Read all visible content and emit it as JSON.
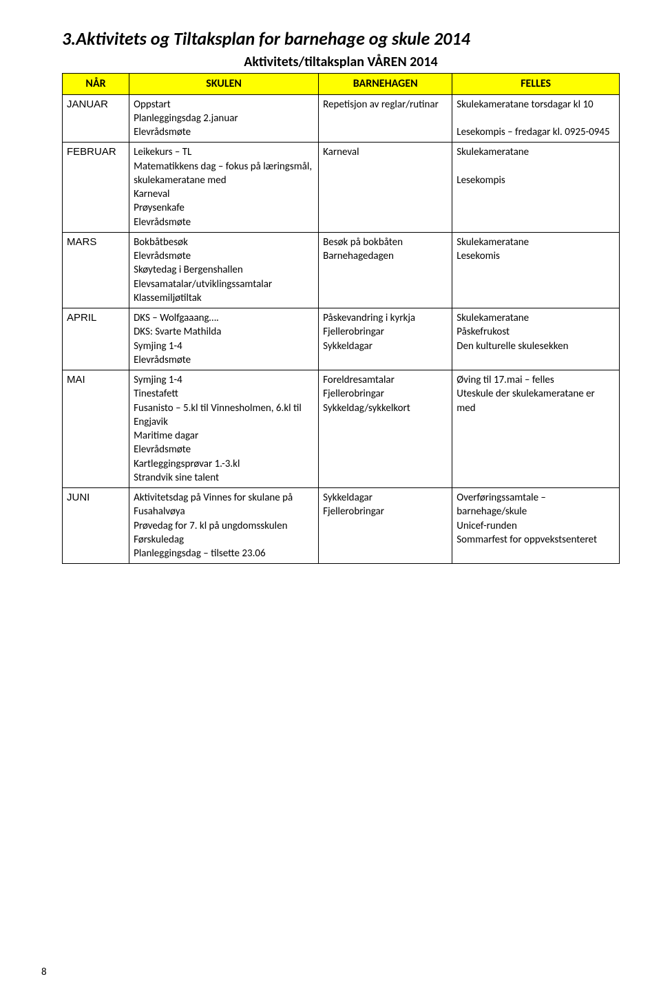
{
  "page": {
    "title": "3.Aktivitets og Tiltaksplan for barnehage og skule  2014",
    "subtitle": "Aktivitets/tiltaksplan VÅREN 2014",
    "pageNumber": "8"
  },
  "table": {
    "headers": [
      "NÅR",
      "SKULEN",
      "BARNEHAGEN",
      "FELLES"
    ],
    "rows": [
      {
        "month": "JANUAR",
        "skulen": "Oppstart\nPlanleggingsdag 2.januar\nElevrådsmøte",
        "barnehagen": "Repetisjon av reglar/rutinar",
        "felles": "Skulekameratane torsdagar kl 10\n\nLesekompis – fredagar kl. 0925-0945"
      },
      {
        "month": "FEBRUAR",
        "skulen": "Leikekurs – TL\nMatematikkens dag – fokus på læringsmål, skulekameratane med\nKarneval\nPrøysenkafe\nElevrådsmøte",
        "barnehagen": "Karneval",
        "felles": "Skulekameratane\n\nLesekompis"
      },
      {
        "month": "MARS",
        "skulen": "Bokbåtbesøk\nElevrådsmøte\nSkøytedag i Bergenshallen\nElevsamatalar/utviklingssamtalar\nKlassemiljøtiltak",
        "barnehagen": "Besøk på bokbåten\nBarnehagedagen",
        "felles": "Skulekameratane\nLesekomis"
      },
      {
        "month": "APRIL",
        "skulen": "DKS – Wolfgaaang….\nDKS: Svarte Mathilda\nSymjing 1-4\nElevrådsmøte",
        "barnehagen": "Påskevandring i kyrkja\nFjellerobringar\nSykkeldagar",
        "felles": "Skulekameratane\nPåskefrukost\nDen kulturelle skulesekken"
      },
      {
        "month": "MAI",
        "skulen": "Symjing 1-4\nTinestafett\nFusanisto – 5.kl til Vinnesholmen, 6.kl til Engjavik\nMaritime dagar\nElevrådsmøte\nKartleggingsprøvar 1.-3.kl\nStrandvik sine talent",
        "barnehagen": "Foreldresamtalar\nFjellerobringar\nSykkeldag/sykkelkort",
        "felles": "Øving til 17.mai – felles\nUteskule der skulekameratane er med"
      },
      {
        "month": "JUNI",
        "skulen": "Aktivitetsdag på Vinnes for skulane på Fusahalvøya\nPrøvedag for 7. kl på ungdomsskulen\nFørskuledag\nPlanleggingsdag – tilsette 23.06",
        "barnehagen": "Sykkeldagar\nFjellerobringar",
        "felles": "Overføringssamtale – barnehage/skule\nUnicef-runden\nSommarfest for oppvekstsenteret"
      }
    ]
  }
}
